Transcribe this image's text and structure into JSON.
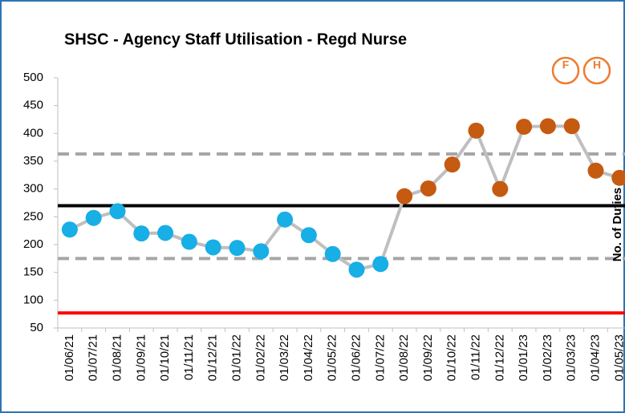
{
  "chart_data": {
    "type": "line",
    "title": "SHSC - Agency Staff Utilisation - Regd Nurse",
    "y_label": "No. of Duties",
    "icons": [
      "F",
      "H"
    ],
    "categories": [
      "01/06/21",
      "01/07/21",
      "01/08/21",
      "01/09/21",
      "01/10/21",
      "01/11/21",
      "01/12/21",
      "01/01/22",
      "01/02/22",
      "01/03/22",
      "01/04/22",
      "01/05/22",
      "01/06/22",
      "01/07/22",
      "01/08/22",
      "01/09/22",
      "01/10/22",
      "01/11/22",
      "01/12/22",
      "01/01/23",
      "01/02/23",
      "01/03/23",
      "01/04/23",
      "01/05/23"
    ],
    "values": [
      227,
      248,
      260,
      220,
      221,
      205,
      195,
      194,
      188,
      245,
      217,
      183,
      155,
      165,
      287,
      301,
      344,
      405,
      300,
      412,
      413,
      413,
      333,
      320
    ],
    "point_colors": [
      "#18aee6",
      "#18aee6",
      "#18aee6",
      "#18aee6",
      "#18aee6",
      "#18aee6",
      "#18aee6",
      "#18aee6",
      "#18aee6",
      "#18aee6",
      "#18aee6",
      "#18aee6",
      "#18aee6",
      "#18aee6",
      "#c55a11",
      "#c55a11",
      "#c55a11",
      "#c55a11",
      "#c55a11",
      "#c55a11",
      "#c55a11",
      "#c55a11",
      "#c55a11",
      "#c55a11"
    ],
    "line_color": "#bfbfbf",
    "reference_lines": [
      {
        "value": 270,
        "color": "#000000",
        "dashed": false
      },
      {
        "value": 363,
        "color": "#a6a6a6",
        "dashed": true
      },
      {
        "value": 175,
        "color": "#a6a6a6",
        "dashed": true
      },
      {
        "value": 77,
        "color": "#ff0000",
        "dashed": false
      }
    ],
    "ylim": [
      50,
      500
    ],
    "yticks": [
      50,
      100,
      150,
      200,
      250,
      300,
      350,
      400,
      450,
      500
    ]
  }
}
